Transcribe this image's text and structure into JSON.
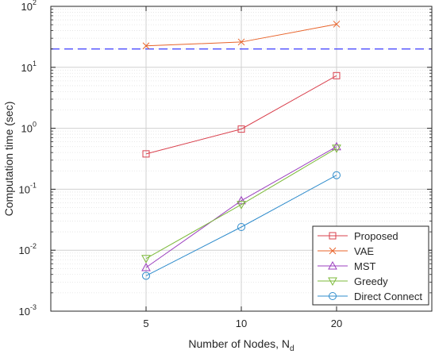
{
  "chart_data": {
    "type": "line",
    "xlabel": "Number of Nodes, N",
    "xlabel_subscript": "d",
    "ylabel": "Computation time (sec)",
    "x_scale": "categorical",
    "x_categories": [
      "5",
      "10",
      "20"
    ],
    "xlim": [
      0,
      4
    ],
    "y_scale": "log",
    "ylim": [
      0.001,
      100
    ],
    "y_ticks": [
      {
        "base": "10",
        "exp": "-3"
      },
      {
        "base": "10",
        "exp": "-2"
      },
      {
        "base": "10",
        "exp": "-1"
      },
      {
        "base": "10",
        "exp": "0"
      },
      {
        "base": "10",
        "exp": "1"
      },
      {
        "base": "10",
        "exp": "2"
      }
    ],
    "grid": true,
    "minor_grid": true,
    "legend_position": "bottom-right",
    "reference_line": {
      "y": 20,
      "color": "#4d4dff",
      "style": "dashed"
    },
    "series": [
      {
        "name": "Proposed",
        "marker": "square",
        "color": "#d9404d",
        "values": [
          0.38,
          0.97,
          7.3
        ]
      },
      {
        "name": "VAE",
        "marker": "x",
        "color": "#e8632a",
        "values": [
          22.5,
          26.0,
          51.0
        ]
      },
      {
        "name": "MST",
        "marker": "triangle-up",
        "color": "#9b3fbf",
        "values": [
          0.0052,
          0.065,
          0.5
        ]
      },
      {
        "name": "Greedy",
        "marker": "triangle-down",
        "color": "#7dba3b",
        "values": [
          0.0073,
          0.056,
          0.47
        ]
      },
      {
        "name": "Direct Connect",
        "marker": "circle",
        "color": "#2f8ccc",
        "values": [
          0.0038,
          0.024,
          0.17
        ]
      }
    ]
  }
}
